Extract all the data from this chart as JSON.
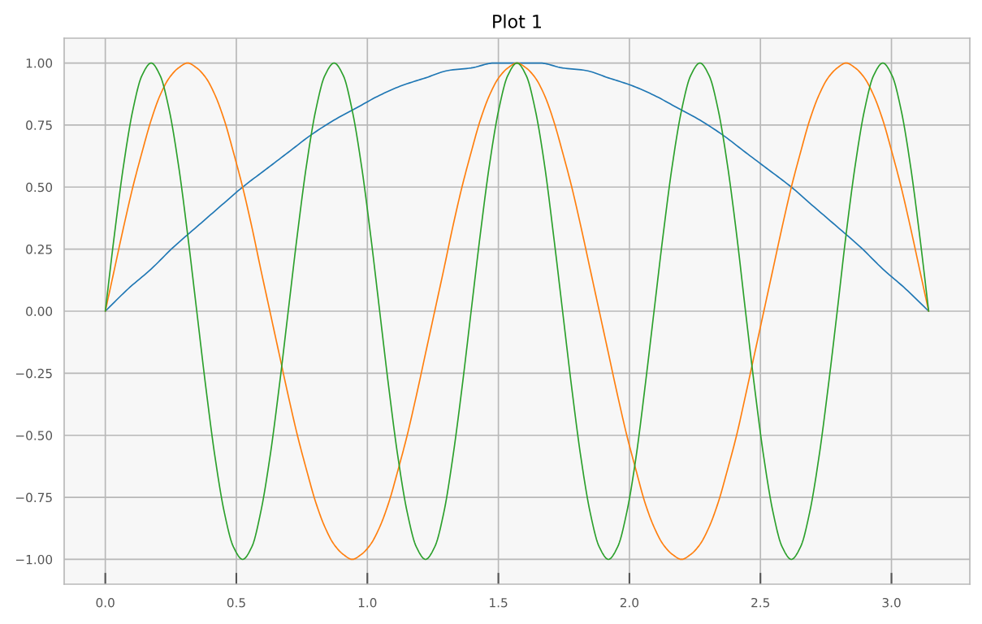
{
  "chart_data": {
    "type": "line",
    "title": "Plot 1",
    "x": [
      0,
      0.035,
      0.07,
      0.105,
      0.14,
      0.175,
      0.209,
      0.244,
      0.279,
      0.314,
      0.349,
      0.384,
      0.419,
      0.454,
      0.489,
      0.524,
      0.559,
      0.593,
      0.628,
      0.663,
      0.698,
      0.733,
      0.768,
      0.803,
      0.838,
      0.873,
      0.908,
      0.942,
      0.977,
      1.012,
      1.047,
      1.082,
      1.117,
      1.152,
      1.187,
      1.222,
      1.257,
      1.292,
      1.326,
      1.361,
      1.396,
      1.431,
      1.466,
      1.501,
      1.536,
      1.571,
      1.606,
      1.641,
      1.676,
      1.71,
      1.745,
      1.78,
      1.815,
      1.85,
      1.885,
      1.92,
      1.955,
      1.99,
      2.025,
      2.059,
      2.094,
      2.129,
      2.164,
      2.199,
      2.234,
      2.269,
      2.304,
      2.339,
      2.374,
      2.409,
      2.443,
      2.478,
      2.513,
      2.548,
      2.583,
      2.618,
      2.653,
      2.688,
      2.723,
      2.758,
      2.793,
      2.827,
      2.862,
      2.897,
      2.932,
      2.967,
      3.002,
      3.037,
      3.072,
      3.107,
      3.142
    ],
    "series": [
      {
        "color": "#1f77b4",
        "x": [
          0,
          0.087,
          0.175,
          0.262,
          0.349,
          0.436,
          0.524,
          0.611,
          0.698,
          0.785,
          0.873,
          0.96,
          1.047,
          1.134,
          1.222,
          1.309,
          1.396,
          1.484,
          1.571,
          1.658,
          1.745,
          1.833,
          1.92,
          2.007,
          2.094,
          2.182,
          2.269,
          2.356,
          2.443,
          2.531,
          2.618,
          2.705,
          2.793,
          2.88,
          2.967,
          3.054,
          3.142
        ],
        "values": [
          0,
          0.09,
          0.17,
          0.26,
          0.34,
          0.42,
          0.5,
          0.57,
          0.64,
          0.71,
          0.77,
          0.82,
          0.87,
          0.91,
          0.94,
          0.97,
          0.98,
          1,
          1,
          1,
          0.98,
          0.97,
          0.94,
          0.91,
          0.87,
          0.82,
          0.77,
          0.71,
          0.64,
          0.57,
          0.5,
          0.42,
          0.34,
          0.26,
          0.17,
          0.09,
          0
        ]
      },
      {
        "color": "#ff7f0e",
        "values": [
          0,
          0.17,
          0.34,
          0.5,
          0.64,
          0.77,
          0.87,
          0.94,
          0.98,
          1,
          0.98,
          0.94,
          0.87,
          0.77,
          0.64,
          0.5,
          0.34,
          0.17,
          0,
          -0.17,
          -0.34,
          -0.5,
          -0.64,
          -0.77,
          -0.87,
          -0.94,
          -0.98,
          -1,
          -0.98,
          -0.94,
          -0.87,
          -0.77,
          -0.64,
          -0.5,
          -0.34,
          -0.17,
          0,
          0.17,
          0.34,
          0.5,
          0.64,
          0.77,
          0.87,
          0.94,
          0.98,
          1,
          0.98,
          0.94,
          0.87,
          0.77,
          0.64,
          0.5,
          0.34,
          0.17,
          0,
          -0.17,
          -0.34,
          -0.5,
          -0.64,
          -0.77,
          -0.87,
          -0.94,
          -0.98,
          -1,
          -0.98,
          -0.94,
          -0.87,
          -0.77,
          -0.64,
          -0.5,
          -0.34,
          -0.17,
          0,
          0.17,
          0.34,
          0.5,
          0.64,
          0.77,
          0.87,
          0.94,
          0.98,
          1,
          0.98,
          0.94,
          0.87,
          0.77,
          0.64,
          0.5,
          0.34,
          0.17,
          0
        ]
      },
      {
        "color": "#2ca02c",
        "values": [
          0,
          0.31,
          0.59,
          0.81,
          0.95,
          1,
          0.95,
          0.81,
          0.59,
          0.31,
          0,
          -0.31,
          -0.59,
          -0.81,
          -0.95,
          -1,
          -0.95,
          -0.81,
          -0.59,
          -0.31,
          0,
          0.31,
          0.59,
          0.81,
          0.95,
          1,
          0.95,
          0.81,
          0.59,
          0.31,
          0,
          -0.31,
          -0.59,
          -0.81,
          -0.95,
          -1,
          -0.95,
          -0.81,
          -0.59,
          -0.31,
          0,
          0.31,
          0.59,
          0.81,
          0.95,
          1,
          0.95,
          0.81,
          0.59,
          0.31,
          0,
          -0.31,
          -0.59,
          -0.81,
          -0.95,
          -1,
          -0.95,
          -0.81,
          -0.59,
          -0.31,
          0,
          0.31,
          0.59,
          0.81,
          0.95,
          1,
          0.95,
          0.81,
          0.59,
          0.31,
          0,
          -0.31,
          -0.59,
          -0.81,
          -0.95,
          -1,
          -0.95,
          -0.81,
          -0.59,
          -0.31,
          0,
          0.31,
          0.59,
          0.81,
          0.95,
          1,
          0.95,
          0.81,
          0.59,
          0.31,
          0
        ]
      }
    ],
    "xlim": [
      -0.157,
      3.299
    ],
    "ylim": [
      -1.1,
      1.1
    ],
    "xticks": [
      {
        "value": 0,
        "label": "0.0"
      },
      {
        "value": 0.5,
        "label": "0.5"
      },
      {
        "value": 1,
        "label": "1.0"
      },
      {
        "value": 1.5,
        "label": "1.5"
      },
      {
        "value": 2,
        "label": "2.0"
      },
      {
        "value": 2.5,
        "label": "2.5"
      },
      {
        "value": 3,
        "label": "3.0"
      }
    ],
    "yticks": [
      {
        "value": -1,
        "label": "−1.00"
      },
      {
        "value": -0.75,
        "label": "−0.75"
      },
      {
        "value": -0.5,
        "label": "−0.50"
      },
      {
        "value": -0.25,
        "label": "−0.25"
      },
      {
        "value": 0,
        "label": "0.00"
      },
      {
        "value": 0.25,
        "label": "0.25"
      },
      {
        "value": 0.5,
        "label": "0.50"
      },
      {
        "value": 0.75,
        "label": "0.75"
      },
      {
        "value": 1,
        "label": "1.00"
      }
    ],
    "grid": true,
    "line_style": "solid"
  }
}
